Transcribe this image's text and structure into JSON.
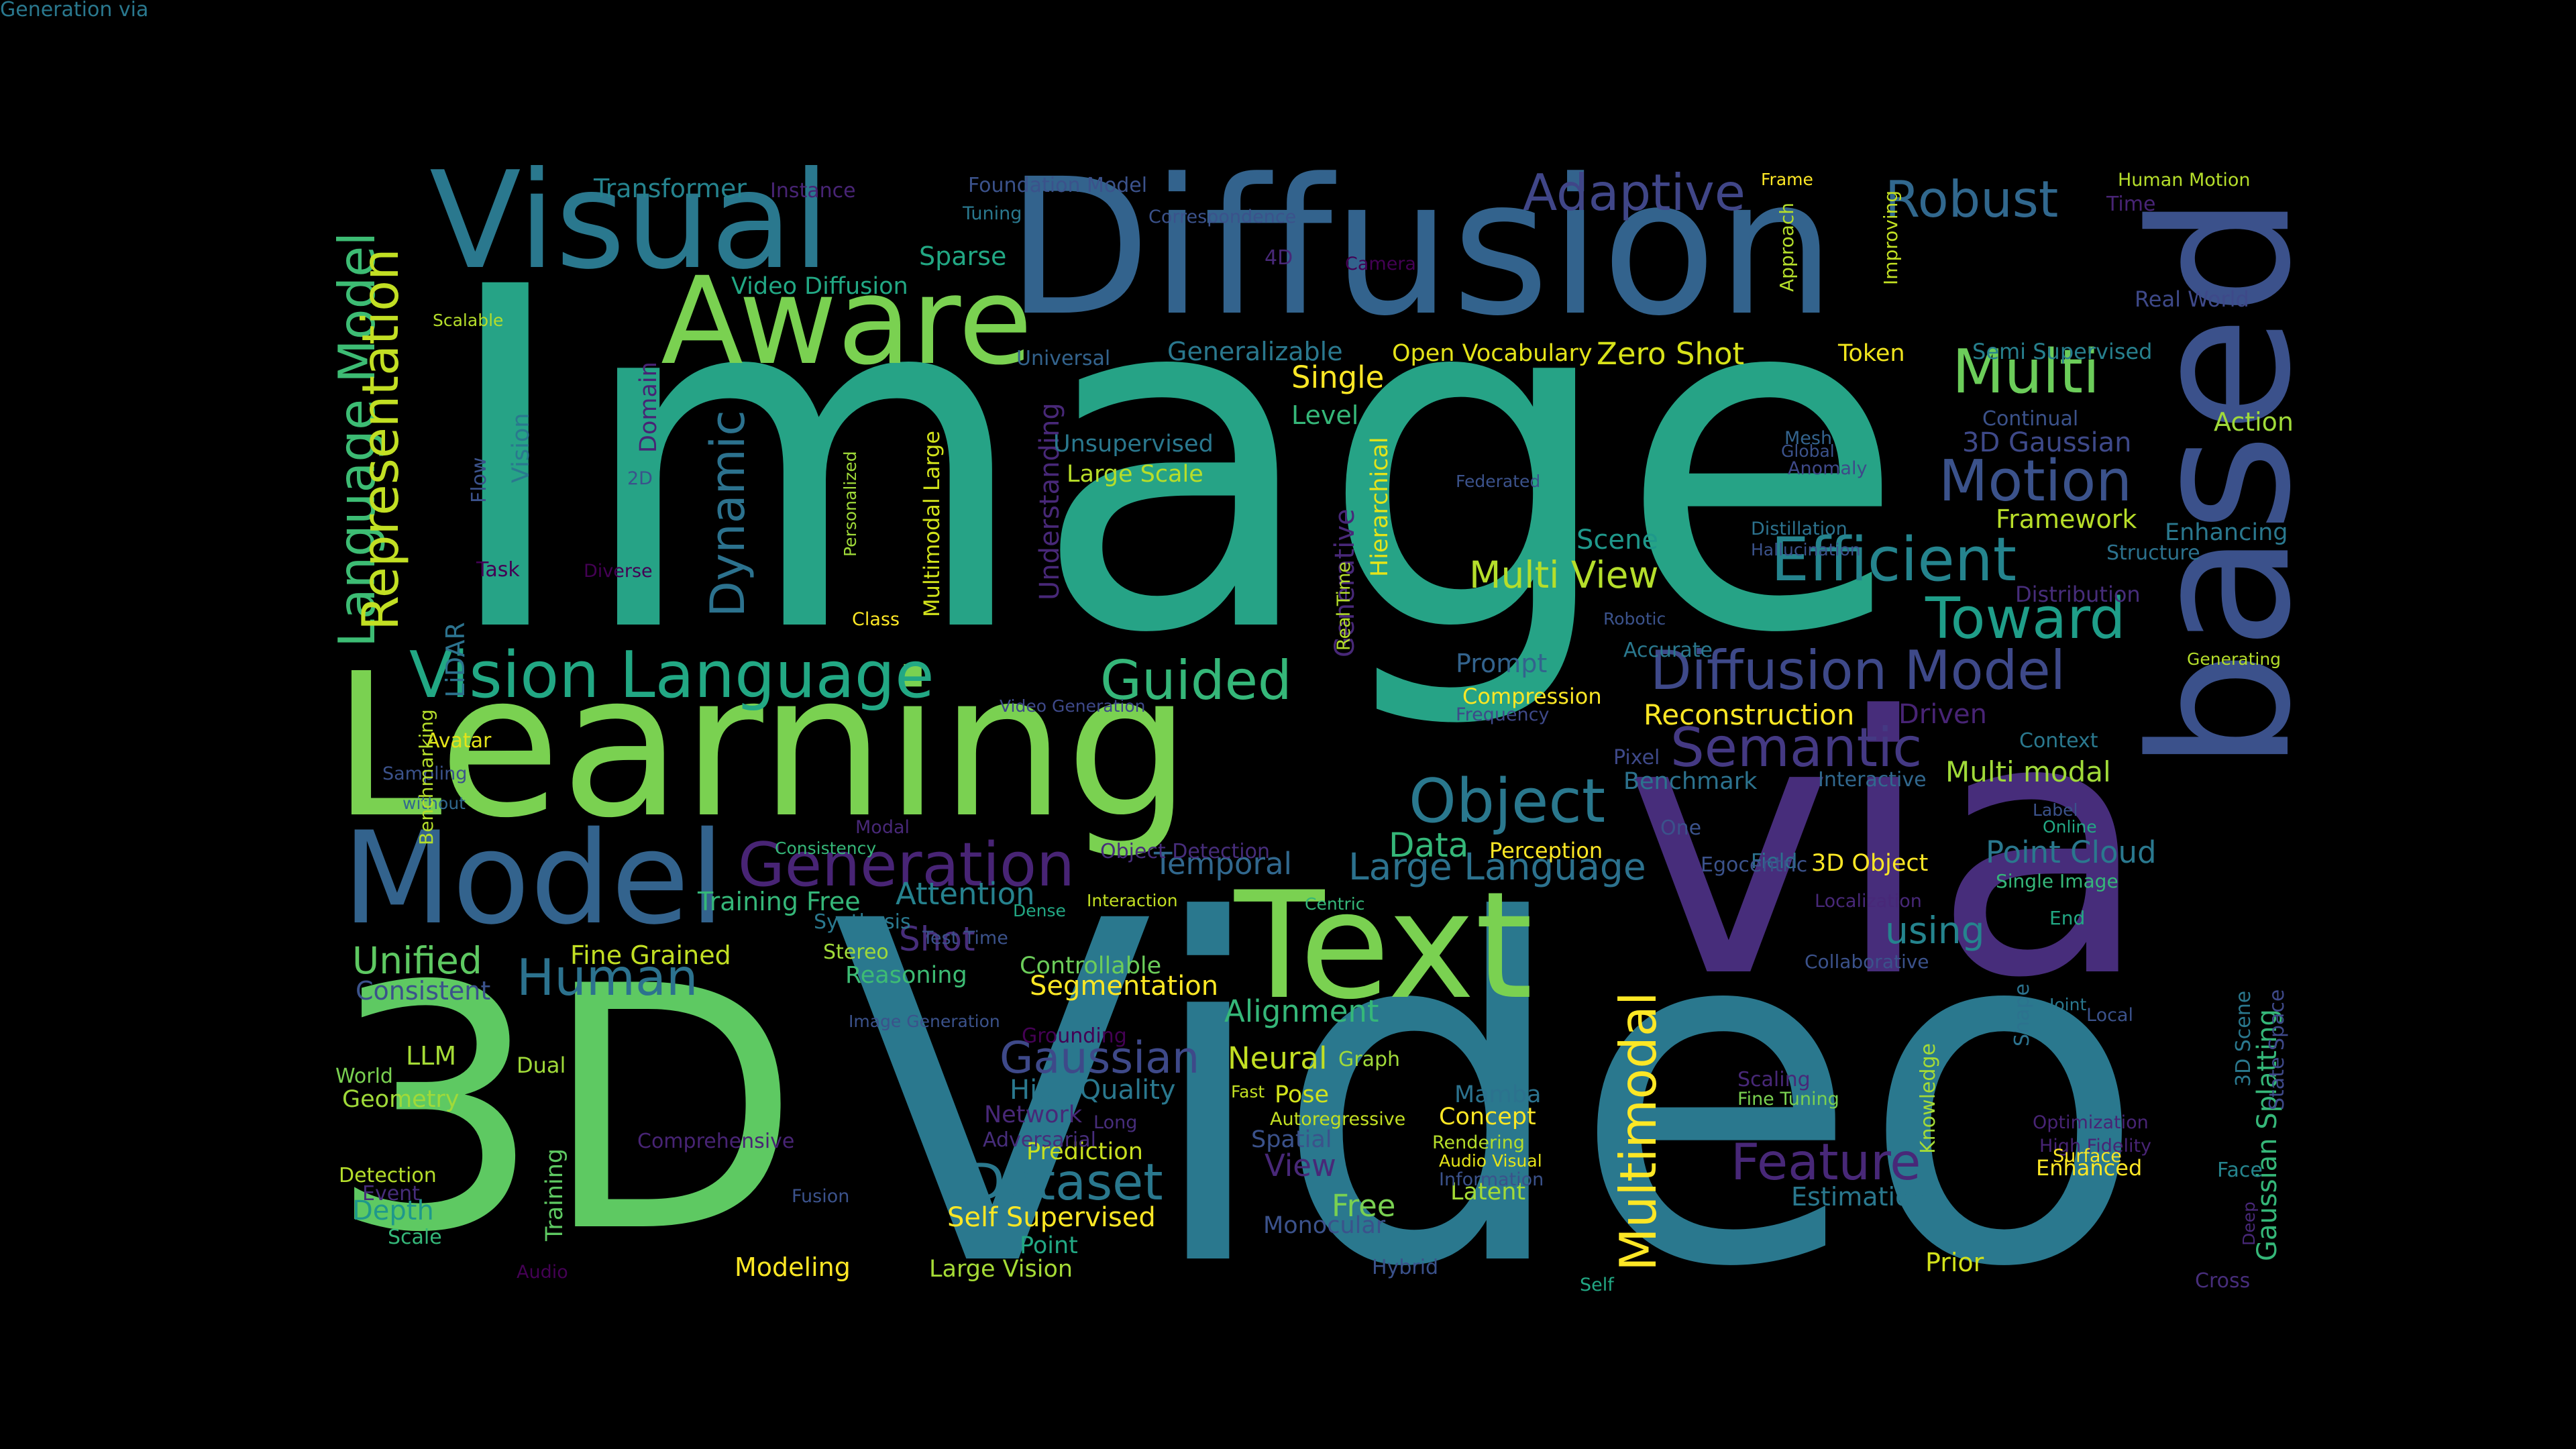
{
  "words": [
    {
      "text": "Image",
      "color": "#26a386",
      "vertical": false
    },
    {
      "text": "Video",
      "color": "#2a788e",
      "vertical": false
    },
    {
      "text": "via",
      "color": "#472d7b",
      "vertical": false
    },
    {
      "text": "3D",
      "color": "#5ec962",
      "vertical": false
    },
    {
      "text": "Learning",
      "color": "#7ad151",
      "vertical": false
    },
    {
      "text": "Diffusion",
      "color": "#33638d",
      "vertical": false
    },
    {
      "text": "based",
      "color": "#3b518b",
      "vertical": true
    },
    {
      "text": "Text",
      "color": "#7ad151",
      "vertical": false
    },
    {
      "text": "Model",
      "color": "#33638d",
      "vertical": false
    },
    {
      "text": "Visual",
      "color": "#2a788e",
      "vertical": false
    },
    {
      "text": "Aware",
      "color": "#7ad151",
      "vertical": false
    },
    {
      "text": "Vision Language",
      "color": "#22a884",
      "vertical": false
    },
    {
      "text": "Generation",
      "color": "#482475",
      "vertical": false
    },
    {
      "text": "Object",
      "color": "#2a788e",
      "vertical": false
    },
    {
      "text": "Multi",
      "color": "#6ccd5a",
      "vertical": false
    },
    {
      "text": "Efficient",
      "color": "#25848e",
      "vertical": false
    },
    {
      "text": "Motion",
      "color": "#3b528b",
      "vertical": false
    },
    {
      "text": "Toward",
      "color": "#1f9e89",
      "vertical": false
    },
    {
      "text": "Diffusion Model",
      "color": "#3e4989",
      "vertical": false
    },
    {
      "text": "Semantic",
      "color": "#443983",
      "vertical": false
    },
    {
      "text": "Guided",
      "color": "#35b779",
      "vertical": false
    },
    {
      "text": "Robust",
      "color": "#31688e",
      "vertical": false
    },
    {
      "text": "Adaptive",
      "color": "#404688",
      "vertical": false
    },
    {
      "text": "Feature",
      "color": "#482878",
      "vertical": false
    },
    {
      "text": "Dataset",
      "color": "#2a788e",
      "vertical": false
    },
    {
      "text": "Human",
      "color": "#2c728e",
      "vertical": false
    },
    {
      "text": "Multimodal",
      "color": "#fde725",
      "vertical": true
    },
    {
      "text": "Language Model",
      "color": "#3dbc74",
      "vertical": true
    },
    {
      "text": "Representation",
      "color": "#c2df23",
      "vertical": true
    },
    {
      "text": "Dynamic",
      "color": "#2c728e",
      "vertical": true
    },
    {
      "text": "Gaussian",
      "color": "#3e4989",
      "vertical": false
    },
    {
      "text": "Large Language",
      "color": "#2c728e",
      "vertical": false
    },
    {
      "text": "Multi View",
      "color": "#b5de2b",
      "vertical": false
    },
    {
      "text": "Unified",
      "color": "#5ec962",
      "vertical": false
    },
    {
      "text": "Attention",
      "color": "#26828e",
      "vertical": false
    },
    {
      "text": "Transformer",
      "color": "#25838e",
      "vertical": false
    },
    {
      "text": "Sparse",
      "color": "#22a884",
      "vertical": false
    },
    {
      "text": "Video Diffusion",
      "color": "#22a884",
      "vertical": false
    },
    {
      "text": "Generalizable",
      "color": "#2a788e",
      "vertical": false
    },
    {
      "text": "Open Vocabulary",
      "color": "#e5e419",
      "vertical": false
    },
    {
      "text": "Zero Shot",
      "color": "#d8e219",
      "vertical": false
    },
    {
      "text": "Token",
      "color": "#f1e51d",
      "vertical": false
    },
    {
      "text": "Semi Supervised",
      "color": "#27808e",
      "vertical": false
    },
    {
      "text": "Single",
      "color": "#fde725",
      "vertical": false
    },
    {
      "text": "Level",
      "color": "#35b779",
      "vertical": false
    },
    {
      "text": "3D Gaussian",
      "color": "#3e4989",
      "vertical": false
    },
    {
      "text": "Framework",
      "color": "#b8de29",
      "vertical": false
    },
    {
      "text": "Scene",
      "color": "#1f988b",
      "vertical": false
    },
    {
      "text": "Reconstruction",
      "color": "#fde725",
      "vertical": false
    },
    {
      "text": "Prompt",
      "color": "#33638d",
      "vertical": false
    },
    {
      "text": "Compression",
      "color": "#fde725",
      "vertical": false
    },
    {
      "text": "Driven",
      "color": "#482475",
      "vertical": false
    },
    {
      "text": "Multi modal",
      "color": "#a0da39",
      "vertical": false
    },
    {
      "text": "Benchmark",
      "color": "#2c728e",
      "vertical": false
    },
    {
      "text": "Point Cloud",
      "color": "#2a788e",
      "vertical": false
    },
    {
      "text": "Data",
      "color": "#35b779",
      "vertical": false
    },
    {
      "text": "Temporal",
      "color": "#31688e",
      "vertical": false
    },
    {
      "text": "Perception",
      "color": "#fde725",
      "vertical": false
    },
    {
      "text": "3D Object",
      "color": "#fde725",
      "vertical": false
    },
    {
      "text": "using",
      "color": "#25848e",
      "vertical": false
    },
    {
      "text": "Training Free",
      "color": "#35b779",
      "vertical": false
    },
    {
      "text": "Shot",
      "color": "#472d7b",
      "vertical": false
    },
    {
      "text": "Consistent",
      "color": "#3b528b",
      "vertical": false
    },
    {
      "text": "Fine Grained",
      "color": "#c2df23",
      "vertical": false
    },
    {
      "text": "Reasoning",
      "color": "#3dbc74",
      "vertical": false
    },
    {
      "text": "Controllable",
      "color": "#6ccd5a",
      "vertical": false
    },
    {
      "text": "Segmentation",
      "color": "#fde725",
      "vertical": false
    },
    {
      "text": "Alignment",
      "color": "#35b779",
      "vertical": false
    },
    {
      "text": "Neural",
      "color": "#c2df23",
      "vertical": false
    },
    {
      "text": "High Quality",
      "color": "#2a788e",
      "vertical": false
    },
    {
      "text": "Network",
      "color": "#482878",
      "vertical": false
    },
    {
      "text": "Prediction",
      "color": "#c8e020",
      "vertical": false
    },
    {
      "text": "Pose",
      "color": "#d2e21b",
      "vertical": false
    },
    {
      "text": "Spatial",
      "color": "#3b528b",
      "vertical": false
    },
    {
      "text": "View",
      "color": "#482878",
      "vertical": false
    },
    {
      "text": "Free",
      "color": "#7ad151",
      "vertical": false
    },
    {
      "text": "Monocular",
      "color": "#3b528b",
      "vertical": false
    },
    {
      "text": "Self Supervised",
      "color": "#fde725",
      "vertical": false
    },
    {
      "text": "Point",
      "color": "#22a884",
      "vertical": false
    },
    {
      "text": "Large Vision",
      "color": "#a5db36",
      "vertical": false
    },
    {
      "text": "Modeling",
      "color": "#fde725",
      "vertical": false
    },
    {
      "text": "LLM",
      "color": "#a5db36",
      "vertical": false
    },
    {
      "text": "World",
      "color": "#7ad151",
      "vertical": false
    },
    {
      "text": "Geometry",
      "color": "#a0da39",
      "vertical": false
    },
    {
      "text": "Dual",
      "color": "#a0da39",
      "vertical": false
    },
    {
      "text": "Detection",
      "color": "#b5de2b",
      "vertical": false
    },
    {
      "text": "Depth",
      "color": "#1f988b",
      "vertical": false
    },
    {
      "text": "Scale",
      "color": "#35b779",
      "vertical": false
    },
    {
      "text": "Training",
      "color": "#5ec962",
      "vertical": true
    },
    {
      "text": "Estimation",
      "color": "#2a788e",
      "vertical": false
    },
    {
      "text": "Prior",
      "color": "#d2e21b",
      "vertical": false
    },
    {
      "text": "Latent",
      "color": "#a5db36",
      "vertical": false
    },
    {
      "text": "Concept",
      "color": "#fde725",
      "vertical": false
    },
    {
      "text": "Mamba",
      "color": "#2c728e",
      "vertical": false
    },
    {
      "text": "Enhanced",
      "color": "#fde725",
      "vertical": false
    },
    {
      "text": "Gaussian Splatting",
      "color": "#35b779",
      "vertical": true
    },
    {
      "text": "Knowledge",
      "color": "#a5db36",
      "vertical": true
    },
    {
      "text": "Understanding",
      "color": "#482878",
      "vertical": true
    },
    {
      "text": "Generative",
      "color": "#482878",
      "vertical": true
    },
    {
      "text": "Foundation Model",
      "color": "#3b528b",
      "vertical": false
    },
    {
      "text": "Instance",
      "color": "#482475",
      "vertical": false
    },
    {
      "text": "Tuning",
      "color": "#2a788e",
      "vertical": false
    },
    {
      "text": "Correspondence",
      "color": "#3b528b",
      "vertical": false
    },
    {
      "text": "Frame",
      "color": "#fde725",
      "vertical": false
    },
    {
      "text": "Human Motion",
      "color": "#b5de2b",
      "vertical": false
    },
    {
      "text": "Time",
      "color": "#482475",
      "vertical": false
    },
    {
      "text": "Real World",
      "color": "#3e4989",
      "vertical": false
    },
    {
      "text": "Action",
      "color": "#a0da39",
      "vertical": false
    },
    {
      "text": "Continual",
      "color": "#3b528b",
      "vertical": false
    },
    {
      "text": "Enhancing",
      "color": "#2a788e",
      "vertical": false
    },
    {
      "text": "Structure",
      "color": "#2c728e",
      "vertical": false
    },
    {
      "text": "Distribution",
      "color": "#472d7b",
      "vertical": false
    },
    {
      "text": "Generating",
      "color": "#b5de2b",
      "vertical": false
    },
    {
      "text": "Context",
      "color": "#2a788e",
      "vertical": false
    },
    {
      "text": "Label",
      "color": "#3b528b",
      "vertical": false
    },
    {
      "text": "Online",
      "color": "#22a884",
      "vertical": false
    },
    {
      "text": "Single Image",
      "color": "#35b779",
      "vertical": false
    },
    {
      "text": "End",
      "color": "#22a884",
      "vertical": false
    },
    {
      "text": "Shape",
      "color": "#2c728e",
      "vertical": true
    },
    {
      "text": "Joint",
      "color": "#2a788e",
      "vertical": false
    },
    {
      "text": "Local",
      "color": "#3b528b",
      "vertical": false
    },
    {
      "text": "3D Scene",
      "color": "#2a788e",
      "vertical": true
    },
    {
      "text": "State Space",
      "color": "#3e4989",
      "vertical": true
    },
    {
      "text": "Optimization",
      "color": "#482475",
      "vertical": false
    },
    {
      "text": "High Fidelity",
      "color": "#482475",
      "vertical": false
    },
    {
      "text": "Surface",
      "color": "#fde725",
      "vertical": false
    },
    {
      "text": "Face",
      "color": "#25848e",
      "vertical": false
    },
    {
      "text": "Deep",
      "color": "#482878",
      "vertical": true
    },
    {
      "text": "Cross",
      "color": "#472d7b",
      "vertical": false
    },
    {
      "text": "Camera",
      "color": "#440154",
      "vertical": false
    },
    {
      "text": "4D",
      "color": "#482878",
      "vertical": false
    },
    {
      "text": "Universal",
      "color": "#33638d",
      "vertical": false
    },
    {
      "text": "Unsupervised",
      "color": "#2a788e",
      "vertical": false
    },
    {
      "text": "Large Scale",
      "color": "#b8de29",
      "vertical": false
    },
    {
      "text": "Hierarchical",
      "color": "#e5e419",
      "vertical": true
    },
    {
      "text": "Federated",
      "color": "#3b528b",
      "vertical": false
    },
    {
      "text": "Mesh",
      "color": "#33638d",
      "vertical": false
    },
    {
      "text": "Global",
      "color": "#3b528b",
      "vertical": false
    },
    {
      "text": "Anomaly",
      "color": "#3e4989",
      "vertical": false
    },
    {
      "text": "Approach",
      "color": "#b5de2b",
      "vertical": true
    },
    {
      "text": "Improving",
      "color": "#c2df23",
      "vertical": true
    },
    {
      "text": "Distillation",
      "color": "#2c728e",
      "vertical": false
    },
    {
      "text": "Hallucination",
      "color": "#3b528b",
      "vertical": false
    },
    {
      "text": "Robotic",
      "color": "#3b528b",
      "vertical": false
    },
    {
      "text": "Accurate",
      "color": "#2a788e",
      "vertical": false
    },
    {
      "text": "Frequency",
      "color": "#3e4989",
      "vertical": false
    },
    {
      "text": "Pixel",
      "color": "#3e4989",
      "vertical": false
    },
    {
      "text": "Interactive",
      "color": "#31688e",
      "vertical": false
    },
    {
      "text": "One",
      "color": "#3b528b",
      "vertical": false
    },
    {
      "text": "Field",
      "color": "#2c728e",
      "vertical": false
    },
    {
      "text": "Egocentric",
      "color": "#3b528b",
      "vertical": false
    },
    {
      "text": "Localization",
      "color": "#482878",
      "vertical": false
    },
    {
      "text": "Collaborative",
      "color": "#3b528b",
      "vertical": false
    },
    {
      "text": "Scalable",
      "color": "#b5de2b",
      "vertical": false
    },
    {
      "text": "Flow",
      "color": "#3b528b",
      "vertical": true
    },
    {
      "text": "Vision",
      "color": "#2a788e",
      "vertical": true
    },
    {
      "text": "Domain",
      "color": "#482475",
      "vertical": true
    },
    {
      "text": "2D",
      "color": "#3b528b",
      "vertical": false
    },
    {
      "text": "Personalized",
      "color": "#a0da39",
      "vertical": true
    },
    {
      "text": "Multimodal Large",
      "color": "#d2e21b",
      "vertical": true
    },
    {
      "text": "Task",
      "color": "#440154",
      "vertical": false
    },
    {
      "text": "Diverse",
      "color": "#440154",
      "vertical": false
    },
    {
      "text": "Class",
      "color": "#fde725",
      "vertical": false
    },
    {
      "text": "LiDAR",
      "color": "#2c728e",
      "vertical": true
    },
    {
      "text": "Video Generation",
      "color": "#3e4989",
      "vertical": false
    },
    {
      "text": "Avatar",
      "color": "#e5e419",
      "vertical": false
    },
    {
      "text": "Sampling",
      "color": "#3b528b",
      "vertical": false
    },
    {
      "text": "without",
      "color": "#31688e",
      "vertical": false
    },
    {
      "text": "Modal",
      "color": "#482878",
      "vertical": false
    },
    {
      "text": "Real Time",
      "color": "#b5de2b",
      "vertical": true
    },
    {
      "text": "Benchmarking",
      "color": "#b5de2b",
      "vertical": true
    },
    {
      "text": "Consistency",
      "color": "#35b779",
      "vertical": false
    },
    {
      "text": "Object Detection",
      "color": "#472d7b",
      "vertical": false
    },
    {
      "text": "Interaction",
      "color": "#c2df23",
      "vertical": false
    },
    {
      "text": "Dense",
      "color": "#22a884",
      "vertical": false
    },
    {
      "text": "Test Time",
      "color": "#3b528b",
      "vertical": false
    },
    {
      "text": "Synthesis",
      "color": "#2a788e",
      "vertical": false
    },
    {
      "text": "Stereo",
      "color": "#a0da39",
      "vertical": false
    },
    {
      "text": "Centric",
      "color": "#35b779",
      "vertical": false
    },
    {
      "text": "Image Generation",
      "color": "#3b528b",
      "vertical": false
    },
    {
      "text": "Grounding",
      "color": "#440154",
      "vertical": false
    },
    {
      "text": "Graph",
      "color": "#a0da39",
      "vertical": false
    },
    {
      "text": "Fast",
      "color": "#c2df23",
      "vertical": false
    },
    {
      "text": "Autoregressive",
      "color": "#c2df23",
      "vertical": false
    },
    {
      "text": "Adversarial",
      "color": "#472d7b",
      "vertical": false
    },
    {
      "text": "Long",
      "color": "#472d7b",
      "vertical": false
    },
    {
      "text": "Rendering",
      "color": "#b5de2b",
      "vertical": false
    },
    {
      "text": "Audio Visual",
      "color": "#e5e419",
      "vertical": false
    },
    {
      "text": "Information",
      "color": "#3b528b",
      "vertical": false
    },
    {
      "text": "Scaling",
      "color": "#482878",
      "vertical": false
    },
    {
      "text": "Fine Tuning",
      "color": "#7ad151",
      "vertical": false
    },
    {
      "text": "Comprehensive",
      "color": "#482475",
      "vertical": false
    },
    {
      "text": "Event",
      "color": "#472d7b",
      "vertical": false
    },
    {
      "text": "Fusion",
      "color": "#3b528b",
      "vertical": false
    },
    {
      "text": "Audio",
      "color": "#440154",
      "vertical": false
    },
    {
      "text": "Hybrid",
      "color": "#3b528b",
      "vertical": false
    },
    {
      "text": "Self",
      "color": "#22a884",
      "vertical": false
    },
    {
      "text": "Generation via",
      "color": "#2a788e",
      "vertical": false
    }
  ]
}
